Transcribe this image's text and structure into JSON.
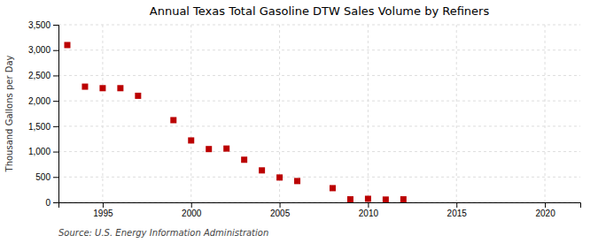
{
  "chart_data": {
    "type": "scatter",
    "title": "Annual Texas Total Gasoline DTW Sales Volume by Refiners",
    "y_label": "Thousand Gallons per Day",
    "annotations": [
      "Source: U.S. Energy Information Administration"
    ],
    "x": [
      1993,
      1994,
      1995,
      1996,
      1997,
      1999,
      2000,
      2001,
      2002,
      2003,
      2004,
      2005,
      2006,
      2008,
      2009,
      2010,
      2011,
      2012
    ],
    "values": [
      3100,
      2280,
      2250,
      2250,
      2100,
      1620,
      1220,
      1050,
      1060,
      840,
      630,
      490,
      420,
      280,
      60,
      70,
      55,
      60
    ],
    "color": "#bb0000",
    "marker": "square",
    "xlim": [
      1992.5,
      2022
    ],
    "xticks": [
      1995,
      2000,
      2005,
      2010,
      2015,
      2020
    ],
    "ylim": [
      0,
      3500
    ],
    "yticks": [
      0,
      500,
      {
        "value": 1000,
        "label": "1,000"
      },
      {
        "value": 1500,
        "label": "1,500"
      },
      {
        "value": 2000,
        "label": "2,000"
      },
      {
        "value": 2500,
        "label": "2,500"
      },
      {
        "value": 3000,
        "label": "3,000"
      },
      {
        "value": 3500,
        "label": "3,500"
      }
    ],
    "grid": true
  }
}
